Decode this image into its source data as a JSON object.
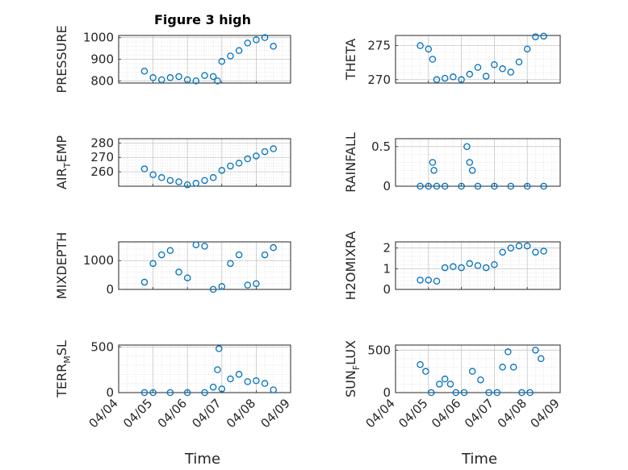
{
  "figure": {
    "title": "Figure 3 high",
    "marker_color": "#0072BD",
    "grid": "dotted minor + major",
    "date_ticks": [
      "04/04",
      "04/05",
      "04/06",
      "04/07",
      "04/08",
      "04/09"
    ],
    "xlabel": "Time"
  },
  "chart_data": [
    {
      "id": "pressure",
      "type": "scatter",
      "ylabel_main": "PRESSURE",
      "ylabel_sub": "",
      "ylabel_tail": "",
      "ylim": [
        790,
        1010
      ],
      "yticks": [
        800,
        900,
        1000
      ],
      "yticklabels": [
        "800",
        "900",
        "1000"
      ],
      "xlim": [
        "04/04",
        "04/09"
      ],
      "x": [
        "04/04 18:00",
        "04/05 00:00",
        "04/05 06:00",
        "04/05 12:00",
        "04/05 18:00",
        "04/06 00:00",
        "04/06 06:00",
        "04/06 12:00",
        "04/06 18:00",
        "04/06 21:00",
        "04/07 00:00",
        "04/07 06:00",
        "04/07 12:00",
        "04/07 18:00",
        "04/08 00:00",
        "04/08 06:00",
        "04/08 12:00"
      ],
      "y": [
        845,
        815,
        805,
        815,
        820,
        805,
        800,
        825,
        820,
        800,
        890,
        915,
        940,
        975,
        990,
        1000,
        960
      ],
      "x_tick_labels": false
    },
    {
      "id": "theta",
      "type": "scatter",
      "ylabel_main": "THETA",
      "ylabel_sub": "",
      "ylabel_tail": "",
      "ylim": [
        269.5,
        276.5
      ],
      "yticks": [
        270,
        275
      ],
      "yticklabels": [
        "270",
        "275"
      ],
      "xlim": [
        "04/04",
        "04/09"
      ],
      "x": [
        "04/04 18:00",
        "04/05 00:00",
        "04/05 03:00",
        "04/05 06:00",
        "04/05 12:00",
        "04/05 18:00",
        "04/06 00:00",
        "04/06 06:00",
        "04/06 12:00",
        "04/06 18:00",
        "04/07 00:00",
        "04/07 06:00",
        "04/07 12:00",
        "04/07 18:00",
        "04/08 00:00",
        "04/08 06:00",
        "04/08 12:00"
      ],
      "y": [
        275,
        274.5,
        273,
        270,
        270.2,
        270.4,
        270,
        270.8,
        271.8,
        270.5,
        272.2,
        271.6,
        271.1,
        272.6,
        274.5,
        276.3,
        276.4
      ],
      "x_tick_labels": false
    },
    {
      "id": "air_temp",
      "type": "scatter",
      "ylabel_main": "AIR",
      "ylabel_sub": "T",
      "ylabel_tail": "EMP",
      "ylim": [
        250,
        283
      ],
      "yticks": [
        260,
        270,
        280
      ],
      "yticklabels": [
        "260",
        "270",
        "280"
      ],
      "xlim": [
        "04/04",
        "04/09"
      ],
      "x": [
        "04/04 18:00",
        "04/05 00:00",
        "04/05 06:00",
        "04/05 12:00",
        "04/05 18:00",
        "04/06 00:00",
        "04/06 06:00",
        "04/06 12:00",
        "04/06 18:00",
        "04/07 00:00",
        "04/07 06:00",
        "04/07 12:00",
        "04/07 18:00",
        "04/08 00:00",
        "04/08 06:00",
        "04/08 12:00"
      ],
      "y": [
        262,
        258,
        256,
        254,
        253,
        251,
        252,
        254,
        256,
        261,
        264,
        266,
        269,
        271,
        274,
        276
      ],
      "x_tick_labels": false
    },
    {
      "id": "rainfall",
      "type": "scatter",
      "ylabel_main": "RAINFALL",
      "ylabel_sub": "",
      "ylabel_tail": "",
      "ylim": [
        0,
        0.6
      ],
      "yticks": [
        0,
        0.5
      ],
      "yticklabels": [
        "0",
        "0.5"
      ],
      "xlim": [
        "04/04",
        "04/09"
      ],
      "x": [
        "04/04 18:00",
        "04/05 00:00",
        "04/05 03:00",
        "04/05 04:00",
        "04/05 06:00",
        "04/05 12:00",
        "04/06 00:00",
        "04/06 04:00",
        "04/06 06:00",
        "04/06 08:00",
        "04/06 12:00",
        "04/07 00:00",
        "04/07 12:00",
        "04/08 00:00",
        "04/08 12:00"
      ],
      "y": [
        0,
        0,
        0.3,
        0.2,
        0,
        0,
        0,
        0.5,
        0.3,
        0.2,
        0,
        0,
        0,
        0,
        0
      ],
      "x_tick_labels": false
    },
    {
      "id": "mixdepth",
      "type": "scatter",
      "ylabel_main": "MIXDEPTH",
      "ylabel_sub": "",
      "ylabel_tail": "",
      "ylim": [
        0,
        1650
      ],
      "yticks": [
        0,
        1000
      ],
      "yticklabels": [
        "0",
        "1000"
      ],
      "xlim": [
        "04/04",
        "04/09"
      ],
      "x": [
        "04/04 18:00",
        "04/05 00:00",
        "04/05 06:00",
        "04/05 12:00",
        "04/05 18:00",
        "04/06 00:00",
        "04/06 06:00",
        "04/06 12:00",
        "04/06 18:00",
        "04/07 00:00",
        "04/07 06:00",
        "04/07 12:00",
        "04/07 18:00",
        "04/08 00:00",
        "04/08 06:00",
        "04/08 12:00"
      ],
      "y": [
        250,
        900,
        1200,
        1350,
        600,
        400,
        1550,
        1500,
        0,
        100,
        900,
        1200,
        150,
        200,
        1200,
        1450
      ],
      "x_tick_labels": false
    },
    {
      "id": "h2omixra",
      "type": "scatter",
      "ylabel_main": "H2OMIXRA",
      "ylabel_sub": "",
      "ylabel_tail": "",
      "ylim": [
        0,
        2.3
      ],
      "yticks": [
        0,
        1,
        2
      ],
      "yticklabels": [
        "0",
        "1",
        "2"
      ],
      "xlim": [
        "04/04",
        "04/09"
      ],
      "x": [
        "04/04 18:00",
        "04/05 00:00",
        "04/05 06:00",
        "04/05 12:00",
        "04/05 18:00",
        "04/06 00:00",
        "04/06 06:00",
        "04/06 12:00",
        "04/06 18:00",
        "04/07 00:00",
        "04/07 06:00",
        "04/07 12:00",
        "04/07 18:00",
        "04/08 00:00",
        "04/08 06:00",
        "04/08 12:00"
      ],
      "y": [
        0.45,
        0.45,
        0.4,
        1.05,
        1.1,
        1.05,
        1.25,
        1.15,
        1.05,
        1.2,
        1.8,
        2.0,
        2.1,
        2.1,
        1.8,
        1.85
      ],
      "x_tick_labels": false
    },
    {
      "id": "terr_msl",
      "type": "scatter",
      "ylabel_main": "TERR",
      "ylabel_sub": "M",
      "ylabel_tail": "SL",
      "ylim": [
        0,
        520
      ],
      "yticks": [
        0,
        500
      ],
      "yticklabels": [
        "0",
        "500"
      ],
      "xlim": [
        "04/04",
        "04/09"
      ],
      "x": [
        "04/04 18:00",
        "04/05 00:00",
        "04/05 12:00",
        "04/06 00:00",
        "04/06 12:00",
        "04/06 18:00",
        "04/06 21:00",
        "04/06 22:00",
        "04/07 00:00",
        "04/07 06:00",
        "04/07 12:00",
        "04/07 18:00",
        "04/08 00:00",
        "04/08 06:00",
        "04/08 12:00"
      ],
      "y": [
        0,
        0,
        0,
        0,
        0,
        60,
        250,
        480,
        40,
        150,
        200,
        120,
        130,
        100,
        30
      ],
      "x_tick_labels": true
    },
    {
      "id": "sun_flux",
      "type": "scatter",
      "ylabel_main": "SUN",
      "ylabel_sub": "F",
      "ylabel_tail": "LUX",
      "ylim": [
        0,
        560
      ],
      "yticks": [
        0,
        500
      ],
      "yticklabels": [
        "0",
        "500"
      ],
      "xlim": [
        "04/04",
        "04/09"
      ],
      "x": [
        "04/04 18:00",
        "04/04 22:00",
        "04/05 02:00",
        "04/05 08:00",
        "04/05 12:00",
        "04/05 16:00",
        "04/05 20:00",
        "04/06 02:00",
        "04/06 08:00",
        "04/06 14:00",
        "04/06 20:00",
        "04/07 02:00",
        "04/07 06:00",
        "04/07 10:00",
        "04/07 14:00",
        "04/07 20:00",
        "04/08 02:00",
        "04/08 06:00",
        "04/08 10:00"
      ],
      "y": [
        330,
        250,
        0,
        100,
        160,
        100,
        0,
        0,
        250,
        150,
        0,
        0,
        300,
        480,
        300,
        0,
        0,
        500,
        400
      ],
      "x_tick_labels": true
    }
  ]
}
